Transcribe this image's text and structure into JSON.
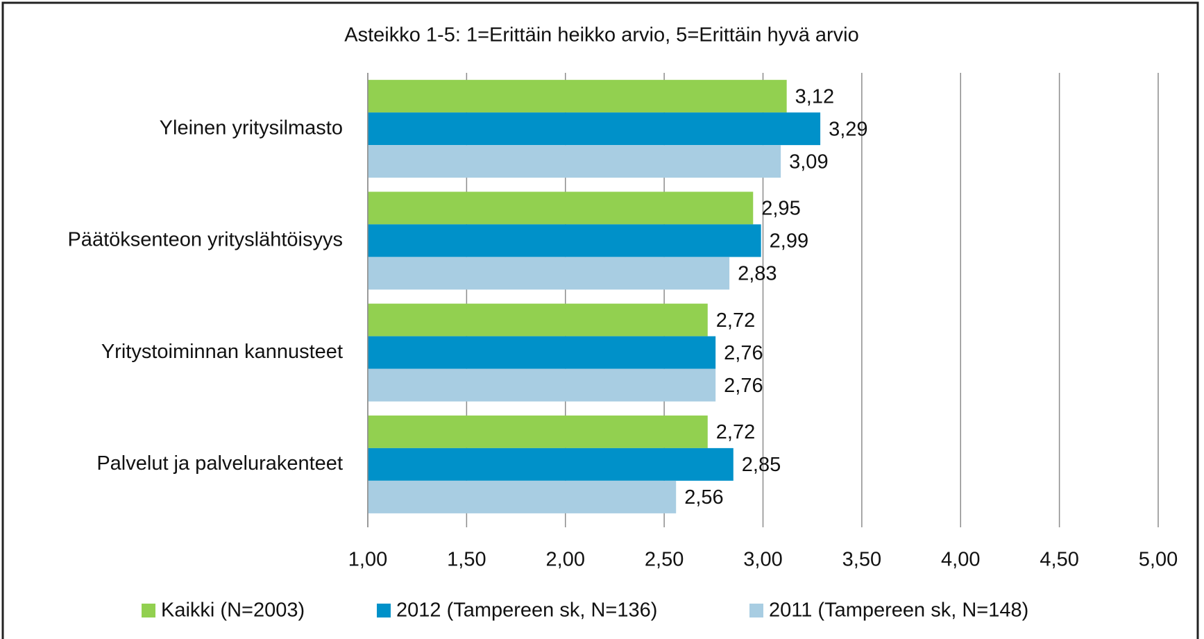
{
  "chart_data": {
    "type": "barh",
    "title": "Asteikko 1-5: 1=Erittäin heikko arvio, 5=Erittäin hyvä arvio",
    "categories": [
      "Yleinen yritysilmasto",
      "Päätöksenteon yrityslähtöisyys",
      "Yritystoiminnan kannusteet",
      "Palvelut ja palvelurakenteet"
    ],
    "series": [
      {
        "name": "Kaikki (N=2003)",
        "color": "#92d050",
        "values": [
          3.12,
          2.95,
          2.72,
          2.72
        ],
        "value_labels": [
          "3,12",
          "2,95",
          "2,72",
          "2,72"
        ]
      },
      {
        "name": "2012 (Tampereen sk, N=136)",
        "color": "#0091c9",
        "values": [
          3.29,
          2.99,
          2.76,
          2.85
        ],
        "value_labels": [
          "3,29",
          "2,99",
          "2,76",
          "2,85"
        ]
      },
      {
        "name": "2011 (Tampereen sk, N=148)",
        "color": "#a8cde2",
        "values": [
          3.09,
          2.83,
          2.76,
          2.56
        ],
        "value_labels": [
          "3,09",
          "2,83",
          "2,76",
          "2,56"
        ]
      }
    ],
    "xlim": [
      1,
      5
    ],
    "xticks": [
      {
        "value": 1,
        "label": "1,00"
      },
      {
        "value": 1.5,
        "label": "1,50"
      },
      {
        "value": 2,
        "label": "2,00"
      },
      {
        "value": 2.5,
        "label": "2,50"
      },
      {
        "value": 3,
        "label": "3,00"
      },
      {
        "value": 3.5,
        "label": "3,50"
      },
      {
        "value": 4,
        "label": "4,00"
      },
      {
        "value": 4.5,
        "label": "4,50"
      },
      {
        "value": 5,
        "label": "5,00"
      }
    ],
    "grid": true,
    "legend": "bottom"
  }
}
